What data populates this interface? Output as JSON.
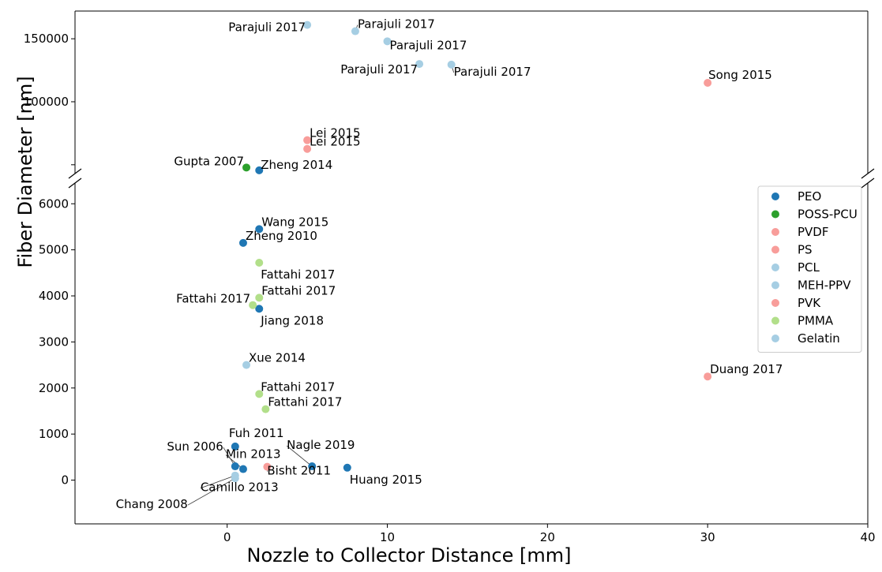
{
  "chart_data": {
    "type": "scatter",
    "xlabel": "Nozzle to Collector Distance    [mm]",
    "ylabel": "Fiber Diameter    [nm]",
    "xlim": [
      -9.5,
      40
    ],
    "x_ticks": [
      0,
      10,
      20,
      30,
      40
    ],
    "y_axis_break": true,
    "ylim_upper": [
      43000,
      172000
    ],
    "yticks_upper": [
      100000,
      150000
    ],
    "yticks_upper_minor": [
      50000
    ],
    "ylim_lower": [
      -950,
      6450
    ],
    "yticks_lower": [
      0,
      1000,
      2000,
      3000,
      4000,
      5000,
      6000
    ],
    "legend": {
      "placement": "right"
    },
    "series": [
      {
        "name": "PEO",
        "color": "#1f77b4",
        "points": [
          {
            "x": 2,
            "y": 45600,
            "label": "Zheng 2014"
          },
          {
            "x": 2,
            "y": 5450,
            "label": "Wang 2015"
          },
          {
            "x": 1,
            "y": 5150,
            "label": "Zheng 2010"
          },
          {
            "x": 2,
            "y": 3720,
            "label": "Jiang 2018"
          },
          {
            "x": 0.5,
            "y": 730,
            "label": "Fuh 2011"
          },
          {
            "x": 0.5,
            "y": 300,
            "label": "Sun 2006"
          },
          {
            "x": 1,
            "y": 240,
            "label": "Min 2013"
          },
          {
            "x": 5.3,
            "y": 300,
            "label": "Nagle 2019"
          },
          {
            "x": 7.5,
            "y": 270,
            "label": "Huang 2015"
          }
        ]
      },
      {
        "name": "POSS-PCU",
        "color": "#2ca02c",
        "points": [
          {
            "x": 1.2,
            "y": 47800,
            "label": "Gupta 2007"
          }
        ]
      },
      {
        "name": "PVDF",
        "color": "#f89d9a",
        "points": [
          {
            "x": 5,
            "y": 69500,
            "label": "Lei 2015"
          },
          {
            "x": 5,
            "y": 62600,
            "label": "Lei 2015"
          },
          {
            "x": 30,
            "y": 115000,
            "label": "Song 2015"
          }
        ]
      },
      {
        "name": "PS",
        "color": "#f89d9a",
        "points": [
          {
            "x": 2.5,
            "y": 290,
            "label": "Bisht 2011"
          }
        ]
      },
      {
        "name": "PCL",
        "color": "#a6cee3",
        "points": [
          {
            "x": 5,
            "y": 161000,
            "label": "Parajuli 2017"
          },
          {
            "x": 8,
            "y": 156000,
            "label": "Parajuli 2017"
          },
          {
            "x": 10,
            "y": 148000,
            "label": "Parajuli 2017"
          },
          {
            "x": 12,
            "y": 130000,
            "label": "Parajuli 2017"
          },
          {
            "x": 14,
            "y": 129500,
            "label": "Parajuli 2017"
          }
        ]
      },
      {
        "name": "MEH-PPV",
        "color": "#a6cee3",
        "points": [
          {
            "x": 1.2,
            "y": 2500,
            "label": "Xue 2014"
          }
        ]
      },
      {
        "name": "PVK",
        "color": "#f89d9a",
        "points": [
          {
            "x": 30,
            "y": 2250,
            "label": "Duang 2017"
          }
        ]
      },
      {
        "name": "PMMA",
        "color": "#b2df8a",
        "points": [
          {
            "x": 2,
            "y": 4720,
            "label": "Fattahi 2017"
          },
          {
            "x": 2,
            "y": 3960,
            "label": "Fattahi 2017"
          },
          {
            "x": 1.6,
            "y": 3800,
            "label": "Fattahi 2017"
          },
          {
            "x": 2,
            "y": 1870,
            "label": "Fattahi 2017"
          },
          {
            "x": 2.4,
            "y": 1540,
            "label": "Fattahi 2017"
          }
        ]
      },
      {
        "name": "Gelatin",
        "color": "#a6cee3",
        "points": [
          {
            "x": 0.5,
            "y": 100,
            "label": "Camillo 2013"
          },
          {
            "x": 0.5,
            "y": 40,
            "label": "Chang 2008"
          }
        ]
      }
    ]
  }
}
